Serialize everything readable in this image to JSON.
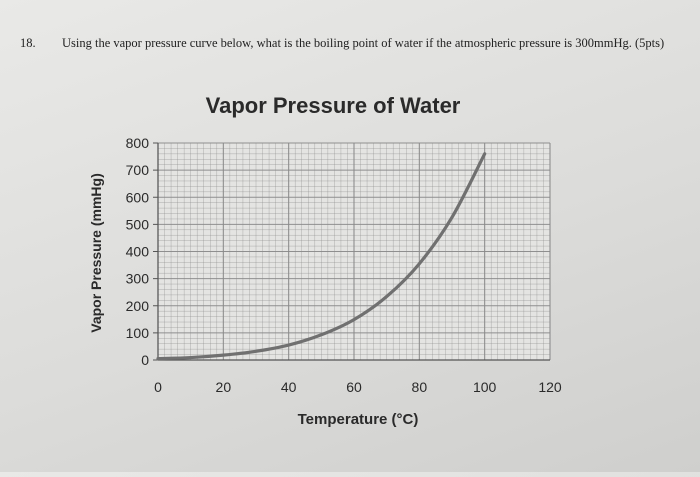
{
  "question": {
    "number": "18.",
    "text": "Using the vapor pressure curve below, what is the boiling point of water if the atmospheric pressure is 300mmHg. (5pts)"
  },
  "chart_data": {
    "type": "line",
    "title": "Vapor Pressure of Water",
    "xlabel": "Temperature (°C)",
    "ylabel": "Vapor Pressure (mmHg)",
    "xlim": [
      0,
      120
    ],
    "ylim": [
      0,
      800
    ],
    "x_ticks": [
      "0",
      "20",
      "40",
      "60",
      "80",
      "100",
      "120"
    ],
    "y_ticks": [
      "0",
      "100",
      "200",
      "300",
      "400",
      "500",
      "600",
      "700",
      "800"
    ],
    "grid": true,
    "series": [
      {
        "x": [
          0,
          10,
          20,
          30,
          40,
          50,
          60,
          70,
          80,
          90,
          100
        ],
        "y": [
          5,
          9,
          18,
          32,
          55,
          93,
          149,
          234,
          355,
          526,
          760
        ]
      }
    ],
    "colors": {
      "curve": "#707070",
      "grid": "#8a8a8a",
      "axis": "#555555"
    }
  }
}
